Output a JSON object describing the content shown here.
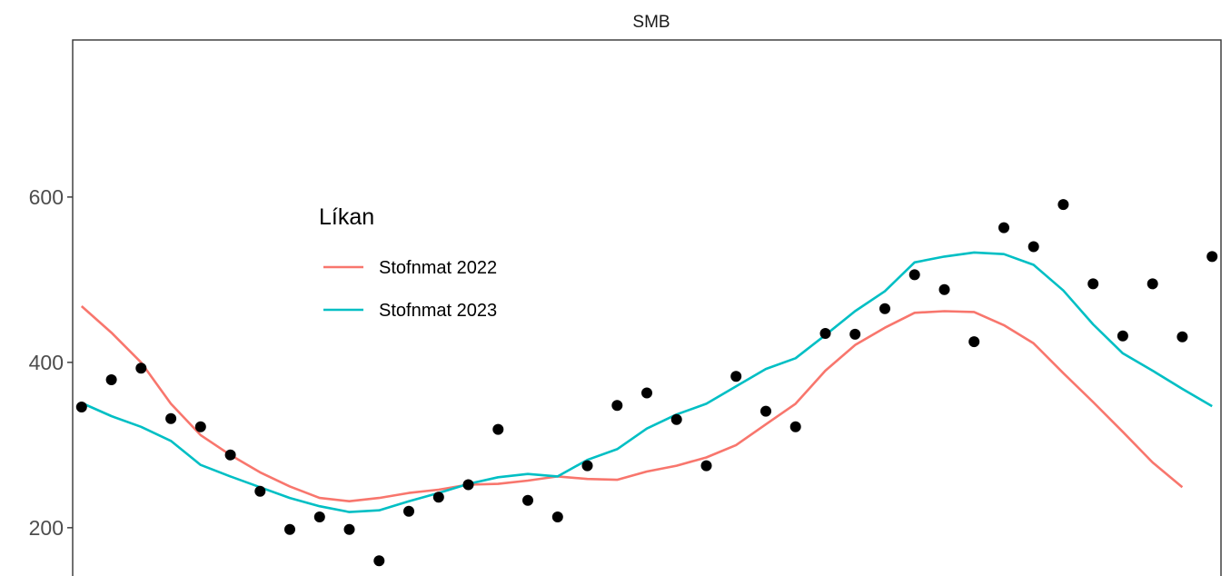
{
  "chart_data": {
    "type": "line",
    "title": "SMB",
    "xlabel": "",
    "ylabel": "",
    "y_ticks": [
      200,
      400,
      600
    ],
    "ylim": [
      135,
      790
    ],
    "xlim": [
      -0.3,
      38.3
    ],
    "grid": false,
    "legend": {
      "title": "Líkan",
      "placement": "inside-top-left",
      "entries": [
        "Stofnmat 2022",
        "Stofnmat 2023"
      ]
    },
    "x": [
      0,
      1,
      2,
      3,
      4,
      5,
      6,
      7,
      8,
      9,
      10,
      11,
      12,
      13,
      14,
      15,
      16,
      17,
      18,
      19,
      20,
      21,
      22,
      23,
      24,
      25,
      26,
      27,
      28,
      29,
      30,
      31,
      32,
      33,
      34,
      35,
      36,
      37,
      38
    ],
    "observations": {
      "color": "#000000",
      "values": [
        346,
        379,
        393,
        332,
        322,
        288,
        244,
        198,
        213,
        198,
        160,
        220,
        237,
        252,
        319,
        233,
        213,
        275,
        348,
        363,
        331,
        275,
        383,
        341,
        322,
        435,
        434,
        465,
        506,
        488,
        425,
        563,
        540,
        591,
        495,
        432,
        495,
        431,
        528
      ]
    },
    "series": [
      {
        "name": "Stofnmat 2022",
        "color": "#F8766D",
        "values": [
          468,
          436,
          400,
          350,
          312,
          288,
          267,
          250,
          236,
          232,
          236,
          242,
          246,
          252,
          253,
          257,
          262,
          259,
          258,
          268,
          275,
          285,
          300,
          325,
          350,
          390,
          421,
          442,
          460,
          462,
          461,
          445,
          423,
          387,
          352,
          316,
          279,
          249,
          null
        ]
      },
      {
        "name": "Stofnmat 2023",
        "color": "#00BFC4",
        "values": [
          351,
          335,
          322,
          305,
          276,
          262,
          249,
          236,
          226,
          219,
          221,
          232,
          242,
          253,
          261,
          265,
          262,
          282,
          295,
          320,
          337,
          350,
          371,
          392,
          405,
          433,
          462,
          486,
          521,
          528,
          533,
          531,
          518,
          487,
          446,
          411,
          390,
          368,
          347
        ]
      }
    ]
  }
}
